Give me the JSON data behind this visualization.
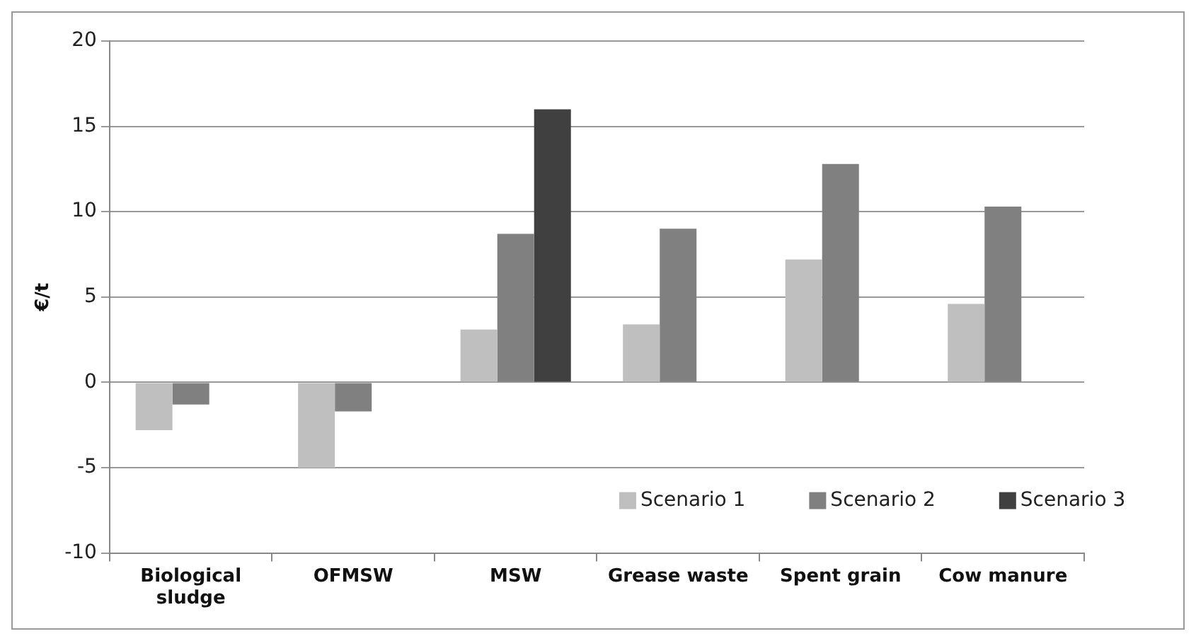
{
  "chart_data": {
    "type": "bar",
    "ylabel": "€/t",
    "categories": [
      "Biological sludge",
      "OFMSW",
      "MSW",
      "Grease waste",
      "Spent grain",
      "Cow manure"
    ],
    "series": [
      {
        "name": "Scenario 1",
        "color": "#bfbfbf",
        "values": [
          -2.8,
          -5,
          3.1,
          3.4,
          7.2,
          4.6
        ]
      },
      {
        "name": "Scenario 2",
        "color": "#808080",
        "values": [
          -1.3,
          -1.7,
          8.7,
          9.0,
          12.8,
          10.3
        ]
      },
      {
        "name": "Scenario 3",
        "color": "#404040",
        "values": [
          null,
          null,
          16,
          null,
          null,
          null
        ]
      }
    ],
    "ylim": [
      -10,
      20
    ],
    "yticks": [
      -10,
      -5,
      0,
      5,
      10,
      15,
      20
    ],
    "grid": "y",
    "legend": "bottom right"
  }
}
